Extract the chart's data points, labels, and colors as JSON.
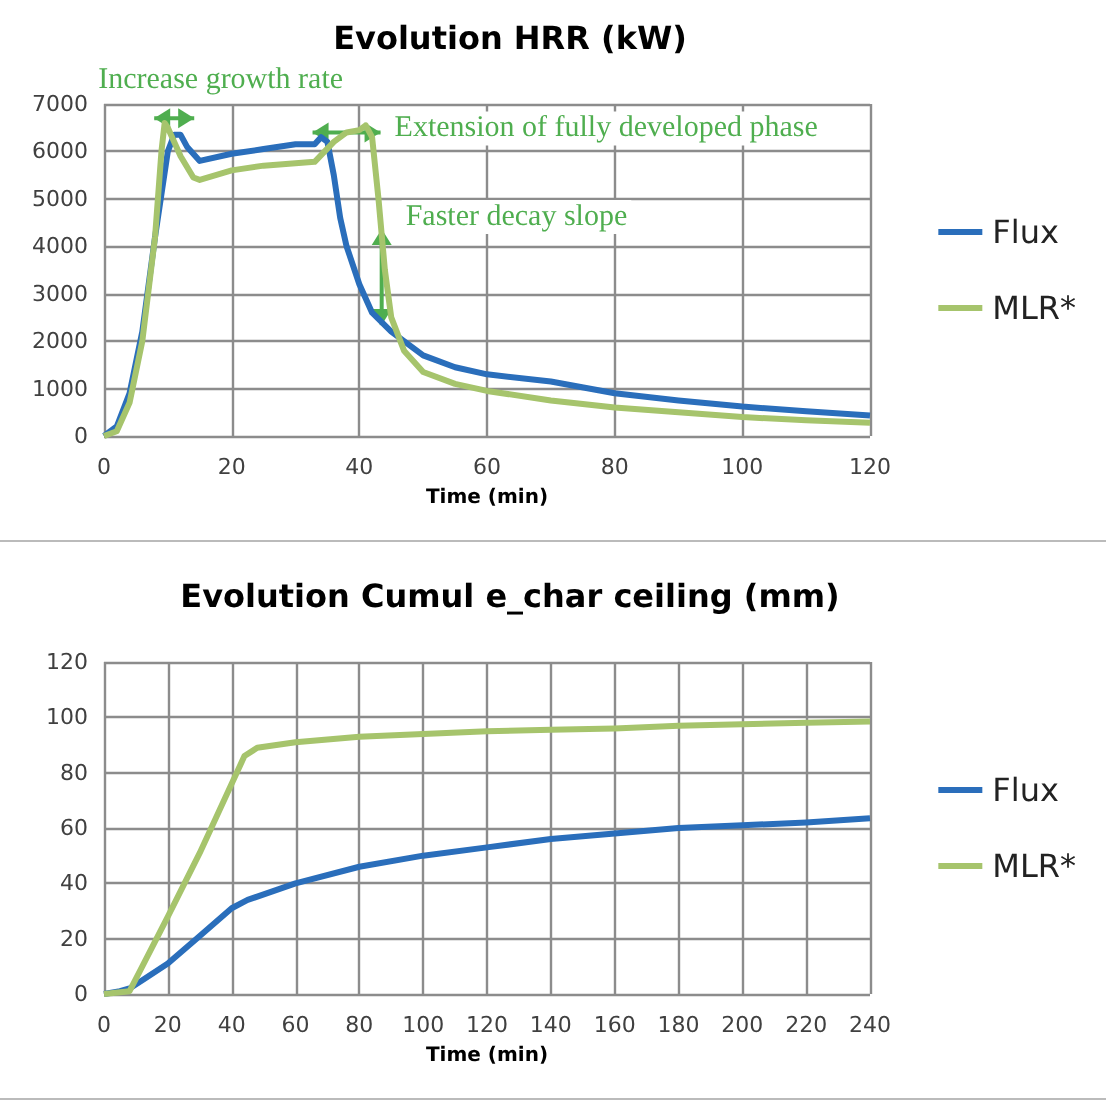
{
  "chart_data": [
    {
      "type": "line",
      "title": "Evolution HRR (kW)",
      "xlabel": "Time (min)",
      "xlim": [
        0,
        120
      ],
      "xticks": [
        0,
        20,
        40,
        60,
        80,
        100,
        120
      ],
      "ylim": [
        0,
        7000
      ],
      "yticks": [
        0,
        1000,
        2000,
        3000,
        4000,
        5000,
        6000,
        7000
      ],
      "grid": true,
      "legend": "right",
      "marker": "none",
      "line_style": "solid",
      "series": [
        {
          "name": "Flux",
          "color": "#2a6ebb",
          "x": [
            0,
            2,
            4,
            6,
            8,
            10,
            11,
            12,
            13,
            15,
            20,
            25,
            30,
            33,
            34,
            35,
            36,
            37,
            38,
            40,
            42,
            45,
            50,
            55,
            60,
            70,
            80,
            90,
            100,
            110,
            120
          ],
          "values": [
            0,
            200,
            900,
            2200,
            4200,
            6000,
            6350,
            6350,
            6100,
            5800,
            5950,
            6050,
            6150,
            6150,
            6300,
            6200,
            5500,
            4600,
            4000,
            3200,
            2600,
            2200,
            1700,
            1450,
            1300,
            1150,
            900,
            750,
            620,
            520,
            430
          ]
        },
        {
          "name": "MLR*",
          "color": "#a6c46c",
          "x": [
            0,
            2,
            4,
            6,
            8,
            9,
            9.5,
            10,
            12,
            14,
            15,
            20,
            25,
            30,
            33,
            36,
            38,
            40,
            41,
            42,
            43,
            44,
            45,
            47,
            50,
            55,
            60,
            70,
            80,
            90,
            100,
            110,
            120
          ],
          "values": [
            0,
            100,
            700,
            2000,
            4200,
            6000,
            6600,
            6500,
            5900,
            5450,
            5400,
            5600,
            5700,
            5750,
            5780,
            6200,
            6400,
            6450,
            6550,
            6300,
            5000,
            3500,
            2500,
            1800,
            1350,
            1100,
            950,
            750,
            600,
            500,
            400,
            330,
            280
          ]
        }
      ],
      "annotations": [
        {
          "text": "Increase growth rate",
          "x": 11,
          "y": 6700
        },
        {
          "text": "Extension of fully developed phase",
          "x": 38,
          "y": 6400
        },
        {
          "text": "Faster decay slope",
          "x": 43.5,
          "y": 3350
        }
      ]
    },
    {
      "type": "line",
      "title": "Evolution Cumul e_char ceiling (mm)",
      "xlabel": "Time (min)",
      "xlim": [
        0,
        240
      ],
      "xticks": [
        0,
        20,
        40,
        60,
        80,
        100,
        120,
        140,
        160,
        180,
        200,
        220,
        240
      ],
      "ylim": [
        0,
        120
      ],
      "yticks": [
        0,
        20,
        40,
        60,
        80,
        100,
        120
      ],
      "grid": true,
      "legend": "right",
      "marker": "none",
      "line_style": "solid",
      "series": [
        {
          "name": "Flux",
          "color": "#2a6ebb",
          "x": [
            0,
            5,
            8,
            12,
            20,
            30,
            40,
            45,
            60,
            80,
            100,
            120,
            140,
            160,
            180,
            200,
            220,
            240
          ],
          "values": [
            0,
            1,
            2,
            5,
            11,
            21,
            31,
            34,
            40,
            46,
            50,
            53,
            56,
            58,
            60,
            61,
            62,
            63.5
          ]
        },
        {
          "name": "MLR*",
          "color": "#a6c46c",
          "x": [
            0,
            8,
            12,
            20,
            30,
            40,
            44,
            48,
            60,
            80,
            100,
            120,
            140,
            160,
            180,
            200,
            220,
            240
          ],
          "values": [
            0,
            1,
            10,
            28,
            51,
            76,
            86,
            89,
            91,
            93,
            94,
            95,
            95.5,
            96,
            97,
            97.5,
            98,
            98.5
          ]
        }
      ]
    }
  ]
}
